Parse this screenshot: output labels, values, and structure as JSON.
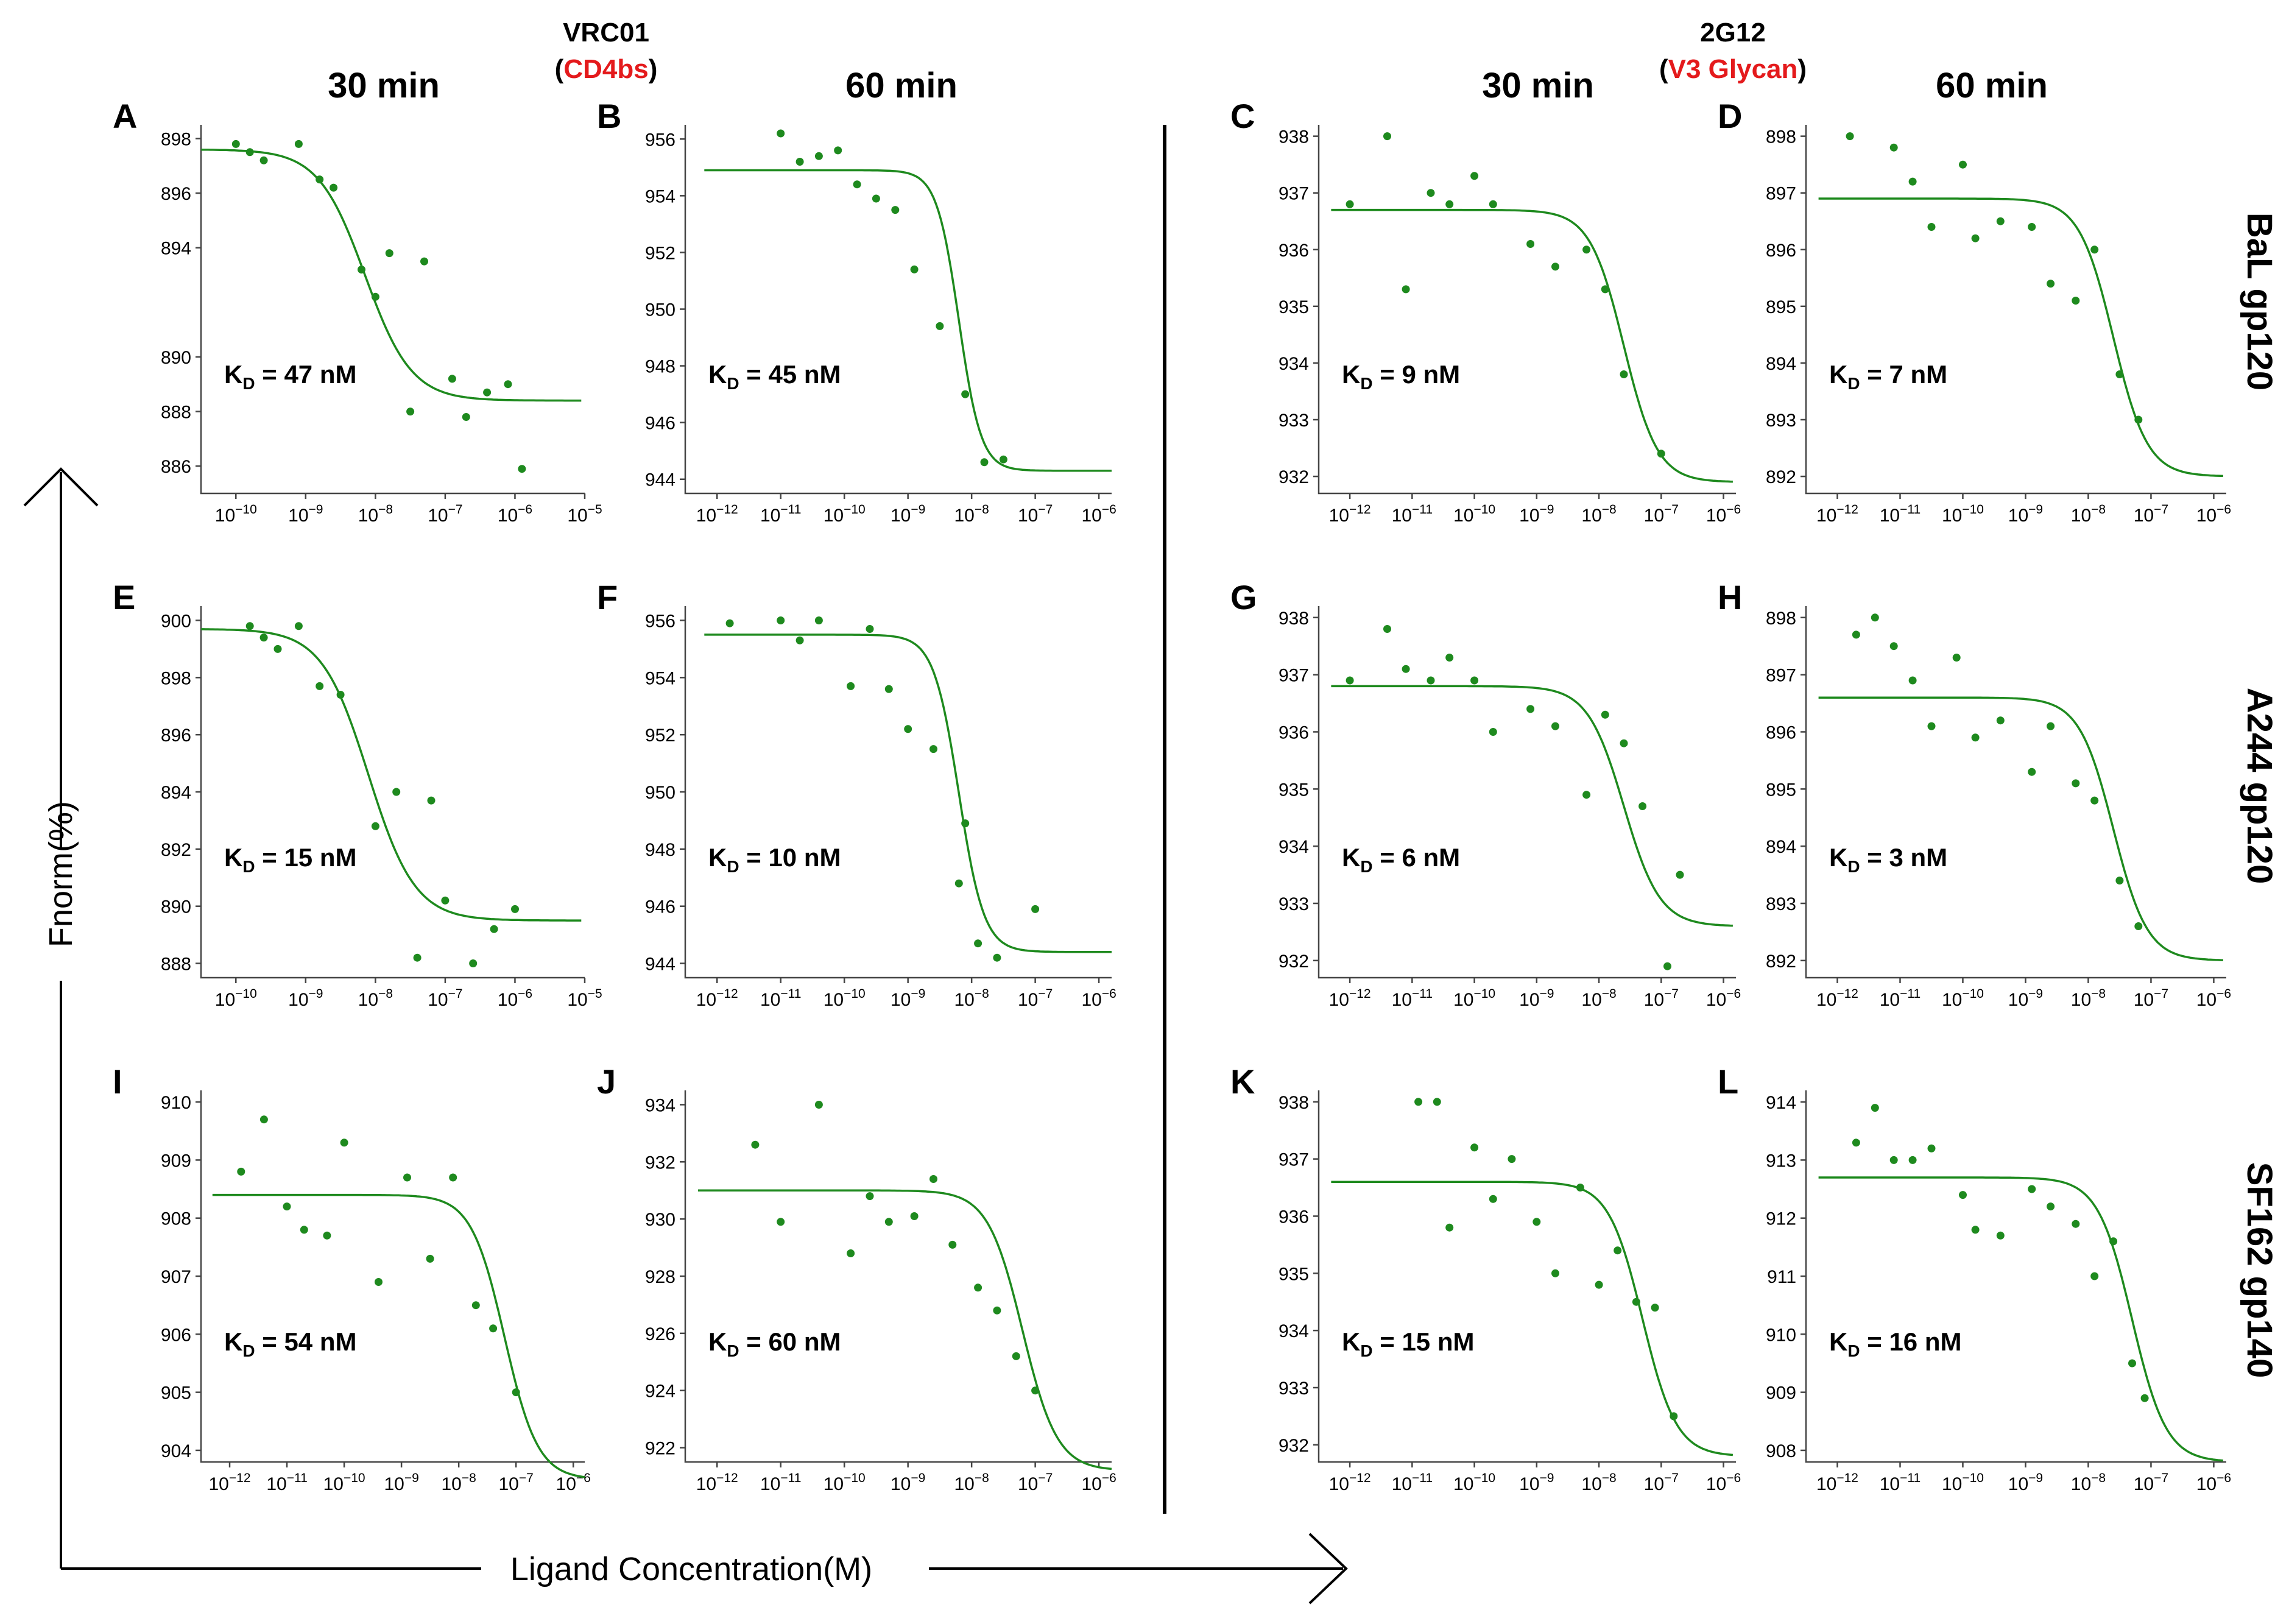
{
  "figure": {
    "left_group": {
      "antibody": "VRC01",
      "epitope": "CD4bs"
    },
    "right_group": {
      "antibody": "2G12",
      "epitope": "V3 Glycan"
    },
    "column_headers": [
      "30 min",
      "60 min",
      "30 min",
      "60 min"
    ],
    "row_labels": [
      "BaL gp120",
      "A244 gp120",
      "SF162 gp140"
    ],
    "y_axis_label": "Fnorm(%)",
    "x_axis_label": "Ligand Concentration(M)",
    "colors": {
      "fit": "#1e8a1e",
      "points": "#1e8a1e",
      "epitope": "#e41a1c"
    }
  },
  "chart_data": [
    {
      "panel": "A",
      "type": "scatter",
      "kd_value": "47 nM",
      "xlim_log": [
        -10.5,
        -5
      ],
      "ylim": [
        885,
        898.5
      ],
      "yticks": [
        886,
        888,
        890,
        894,
        896,
        898
      ],
      "xticks_exp": [
        -10,
        -9,
        -8,
        -7,
        -6,
        -5
      ],
      "fit": {
        "top": 897.6,
        "bottom": 888.4,
        "logEC50": -8.15,
        "hill": 1.3,
        "x_range": [
          -10.5,
          -5.05
        ]
      },
      "points": [
        [
          -10.0,
          897.8
        ],
        [
          -9.8,
          897.5
        ],
        [
          -9.6,
          897.2
        ],
        [
          -9.1,
          897.8
        ],
        [
          -8.8,
          896.5
        ],
        [
          -8.6,
          896.2
        ],
        [
          -8.2,
          893.2
        ],
        [
          -8.0,
          892.2
        ],
        [
          -7.8,
          893.8
        ],
        [
          -7.5,
          888.0
        ],
        [
          -7.3,
          893.5
        ],
        [
          -6.9,
          889.2
        ],
        [
          -6.7,
          887.8
        ],
        [
          -6.4,
          888.7
        ],
        [
          -6.1,
          889.0
        ],
        [
          -5.9,
          885.9
        ]
      ]
    },
    {
      "panel": "B",
      "type": "scatter",
      "kd_value": "45 nM",
      "xlim_log": [
        -12.5,
        -5.8
      ],
      "ylim": [
        943.5,
        956.5
      ],
      "yticks": [
        944,
        946,
        948,
        950,
        952,
        954,
        956
      ],
      "xticks_exp": [
        -12,
        -11,
        -10,
        -9,
        -8,
        -7,
        -6
      ],
      "fit": {
        "top": 954.9,
        "bottom": 944.3,
        "logEC50": -8.2,
        "hill": 2.5,
        "x_range": [
          -12.2,
          -5.8
        ]
      },
      "points": [
        [
          -11.0,
          956.2
        ],
        [
          -10.7,
          955.2
        ],
        [
          -10.4,
          955.4
        ],
        [
          -10.1,
          955.6
        ],
        [
          -9.8,
          954.4
        ],
        [
          -9.5,
          953.9
        ],
        [
          -9.2,
          953.5
        ],
        [
          -8.9,
          951.4
        ],
        [
          -8.5,
          949.4
        ],
        [
          -8.1,
          947.0
        ],
        [
          -7.8,
          944.6
        ],
        [
          -7.5,
          944.7
        ]
      ]
    },
    {
      "panel": "C",
      "type": "scatter",
      "kd_value": "9 nM",
      "xlim_log": [
        -12.5,
        -5.8
      ],
      "ylim": [
        931.7,
        938.2
      ],
      "yticks": [
        932,
        933,
        934,
        935,
        936,
        937,
        938
      ],
      "xticks_exp": [
        -12,
        -11,
        -10,
        -9,
        -8,
        -7,
        -6
      ],
      "fit": {
        "top": 936.7,
        "bottom": 931.9,
        "logEC50": -7.6,
        "hill": 1.6,
        "x_range": [
          -12.3,
          -5.85
        ]
      },
      "points": [
        [
          -12.0,
          936.8
        ],
        [
          -11.4,
          938.0
        ],
        [
          -11.1,
          935.3
        ],
        [
          -10.7,
          937.0
        ],
        [
          -10.4,
          936.8
        ],
        [
          -10.0,
          937.3
        ],
        [
          -9.7,
          936.8
        ],
        [
          -9.1,
          936.1
        ],
        [
          -8.7,
          935.7
        ],
        [
          -8.2,
          936.0
        ],
        [
          -7.9,
          935.3
        ],
        [
          -7.6,
          933.8
        ],
        [
          -7.0,
          932.4
        ]
      ]
    },
    {
      "panel": "D",
      "type": "scatter",
      "kd_value": "7 nM",
      "xlim_log": [
        -12.5,
        -5.8
      ],
      "ylim": [
        891.7,
        898.2
      ],
      "yticks": [
        892,
        893,
        894,
        895,
        896,
        897,
        898
      ],
      "xticks_exp": [
        -12,
        -11,
        -10,
        -9,
        -8,
        -7,
        -6
      ],
      "fit": {
        "top": 896.9,
        "bottom": 892.0,
        "logEC50": -7.6,
        "hill": 1.6,
        "x_range": [
          -12.3,
          -5.85
        ]
      },
      "points": [
        [
          -11.8,
          898.0
        ],
        [
          -11.1,
          897.8
        ],
        [
          -10.8,
          897.2
        ],
        [
          -10.5,
          896.4
        ],
        [
          -10.0,
          897.5
        ],
        [
          -9.8,
          896.2
        ],
        [
          -9.4,
          896.5
        ],
        [
          -8.9,
          896.4
        ],
        [
          -8.6,
          895.4
        ],
        [
          -8.2,
          895.1
        ],
        [
          -7.9,
          896.0
        ],
        [
          -7.5,
          893.8
        ],
        [
          -7.2,
          893.0
        ]
      ]
    },
    {
      "panel": "E",
      "type": "scatter",
      "kd_value": "15 nM",
      "xlim_log": [
        -10.5,
        -5
      ],
      "ylim": [
        887.5,
        900.5
      ],
      "yticks": [
        888,
        890,
        892,
        894,
        896,
        898,
        900
      ],
      "xticks_exp": [
        -10,
        -9,
        -8,
        -7,
        -6,
        -5
      ],
      "fit": {
        "top": 899.7,
        "bottom": 889.5,
        "logEC50": -8.1,
        "hill": 1.3,
        "x_range": [
          -10.5,
          -5.05
        ]
      },
      "points": [
        [
          -9.8,
          899.8
        ],
        [
          -9.6,
          899.4
        ],
        [
          -9.4,
          899.0
        ],
        [
          -9.1,
          899.8
        ],
        [
          -8.8,
          897.7
        ],
        [
          -8.5,
          897.4
        ],
        [
          -8.0,
          892.8
        ],
        [
          -7.7,
          894.0
        ],
        [
          -7.4,
          888.2
        ],
        [
          -7.2,
          893.7
        ],
        [
          -7.0,
          890.2
        ],
        [
          -6.6,
          888.0
        ],
        [
          -6.3,
          889.2
        ],
        [
          -6.0,
          889.9
        ]
      ]
    },
    {
      "panel": "F",
      "type": "scatter",
      "kd_value": "10 nM",
      "xlim_log": [
        -12.5,
        -5.8
      ],
      "ylim": [
        943.5,
        956.5
      ],
      "yticks": [
        944,
        946,
        948,
        950,
        952,
        954,
        956
      ],
      "xticks_exp": [
        -12,
        -11,
        -10,
        -9,
        -8,
        -7,
        -6
      ],
      "fit": {
        "top": 955.5,
        "bottom": 944.4,
        "logEC50": -8.2,
        "hill": 2.2,
        "x_range": [
          -12.2,
          -5.8
        ]
      },
      "points": [
        [
          -11.8,
          955.9
        ],
        [
          -11.0,
          956.0
        ],
        [
          -10.7,
          955.3
        ],
        [
          -10.4,
          956.0
        ],
        [
          -9.9,
          953.7
        ],
        [
          -9.6,
          955.7
        ],
        [
          -9.3,
          953.6
        ],
        [
          -9.0,
          952.2
        ],
        [
          -8.6,
          951.5
        ],
        [
          -8.2,
          946.8
        ],
        [
          -8.1,
          948.9
        ],
        [
          -7.9,
          944.7
        ],
        [
          -7.6,
          944.2
        ],
        [
          -7.0,
          945.9
        ]
      ]
    },
    {
      "panel": "G",
      "type": "scatter",
      "kd_value": "6 nM",
      "xlim_log": [
        -12.5,
        -5.8
      ],
      "ylim": [
        931.7,
        938.2
      ],
      "yticks": [
        932,
        933,
        934,
        935,
        936,
        937,
        938
      ],
      "xticks_exp": [
        -12,
        -11,
        -10,
        -9,
        -8,
        -7,
        -6
      ],
      "fit": {
        "top": 936.8,
        "bottom": 932.6,
        "logEC50": -7.6,
        "hill": 1.5,
        "x_range": [
          -12.3,
          -5.85
        ]
      },
      "points": [
        [
          -12.0,
          936.9
        ],
        [
          -11.4,
          937.8
        ],
        [
          -11.1,
          937.1
        ],
        [
          -10.7,
          936.9
        ],
        [
          -10.4,
          937.3
        ],
        [
          -10.0,
          936.9
        ],
        [
          -9.7,
          936.0
        ],
        [
          -9.1,
          936.4
        ],
        [
          -8.7,
          936.1
        ],
        [
          -8.2,
          934.9
        ],
        [
          -7.9,
          936.3
        ],
        [
          -7.6,
          935.8
        ],
        [
          -7.3,
          934.7
        ],
        [
          -6.9,
          931.9
        ],
        [
          -6.7,
          933.5
        ]
      ]
    },
    {
      "panel": "H",
      "type": "scatter",
      "kd_value": "3 nM",
      "xlim_log": [
        -12.5,
        -5.8
      ],
      "ylim": [
        891.7,
        898.2
      ],
      "yticks": [
        892,
        893,
        894,
        895,
        896,
        897,
        898
      ],
      "xticks_exp": [
        -12,
        -11,
        -10,
        -9,
        -8,
        -7,
        -6
      ],
      "fit": {
        "top": 896.6,
        "bottom": 892.0,
        "logEC50": -7.6,
        "hill": 1.6,
        "x_range": [
          -12.3,
          -5.85
        ]
      },
      "points": [
        [
          -11.7,
          897.7
        ],
        [
          -11.4,
          898.0
        ],
        [
          -11.1,
          897.5
        ],
        [
          -10.8,
          896.9
        ],
        [
          -10.5,
          896.1
        ],
        [
          -10.1,
          897.3
        ],
        [
          -9.8,
          895.9
        ],
        [
          -9.4,
          896.2
        ],
        [
          -8.9,
          895.3
        ],
        [
          -8.6,
          896.1
        ],
        [
          -8.2,
          895.1
        ],
        [
          -7.9,
          894.8
        ],
        [
          -7.5,
          893.4
        ],
        [
          -7.2,
          892.6
        ]
      ]
    },
    {
      "panel": "I",
      "type": "scatter",
      "kd_value": "54 nM",
      "xlim_log": [
        -12.5,
        -5.8
      ],
      "ylim": [
        903.8,
        910.2
      ],
      "yticks": [
        904,
        905,
        906,
        907,
        908,
        909,
        910
      ],
      "xticks_exp": [
        -12,
        -11,
        -10,
        -9,
        -8,
        -7,
        -6
      ],
      "fit": {
        "top": 908.4,
        "bottom": 903.5,
        "logEC50": -7.2,
        "hill": 1.5,
        "x_range": [
          -12.3,
          -5.8
        ]
      },
      "points": [
        [
          -11.8,
          908.8
        ],
        [
          -11.4,
          909.7
        ],
        [
          -11.0,
          908.2
        ],
        [
          -10.7,
          907.8
        ],
        [
          -10.3,
          907.7
        ],
        [
          -10.0,
          909.3
        ],
        [
          -9.4,
          906.9
        ],
        [
          -8.9,
          908.7
        ],
        [
          -8.5,
          907.3
        ],
        [
          -8.1,
          908.7
        ],
        [
          -7.7,
          906.5
        ],
        [
          -7.4,
          906.1
        ],
        [
          -7.0,
          905.0
        ]
      ]
    },
    {
      "panel": "J",
      "type": "scatter",
      "kd_value": "60 nM",
      "xlim_log": [
        -12.5,
        -5.8
      ],
      "ylim": [
        921.5,
        934.5
      ],
      "yticks": [
        922,
        924,
        926,
        928,
        930,
        932,
        934
      ],
      "xticks_exp": [
        -12,
        -11,
        -10,
        -9,
        -8,
        -7,
        -6
      ],
      "fit": {
        "top": 931.0,
        "bottom": 921.2,
        "logEC50": -7.2,
        "hill": 1.6,
        "x_range": [
          -12.3,
          -5.8
        ]
      },
      "points": [
        [
          -11.4,
          932.6
        ],
        [
          -11.0,
          929.9
        ],
        [
          -10.4,
          934.0
        ],
        [
          -9.9,
          928.8
        ],
        [
          -9.6,
          930.8
        ],
        [
          -9.3,
          929.9
        ],
        [
          -8.9,
          930.1
        ],
        [
          -8.6,
          931.4
        ],
        [
          -8.3,
          929.1
        ],
        [
          -7.9,
          927.6
        ],
        [
          -7.6,
          926.8
        ],
        [
          -7.3,
          925.2
        ],
        [
          -7.0,
          924.0
        ]
      ]
    },
    {
      "panel": "K",
      "type": "scatter",
      "kd_value": "15 nM",
      "xlim_log": [
        -12.5,
        -5.8
      ],
      "ylim": [
        931.7,
        938.2
      ],
      "yticks": [
        932,
        933,
        934,
        935,
        936,
        937,
        938
      ],
      "xticks_exp": [
        -12,
        -11,
        -10,
        -9,
        -8,
        -7,
        -6
      ],
      "fit": {
        "top": 936.6,
        "bottom": 931.8,
        "logEC50": -7.3,
        "hill": 1.6,
        "x_range": [
          -12.3,
          -5.85
        ]
      },
      "points": [
        [
          -10.9,
          938.0
        ],
        [
          -10.6,
          938.0
        ],
        [
          -10.4,
          935.8
        ],
        [
          -10.0,
          937.2
        ],
        [
          -9.7,
          936.3
        ],
        [
          -9.4,
          937.0
        ],
        [
          -9.0,
          935.9
        ],
        [
          -8.7,
          935.0
        ],
        [
          -8.3,
          936.5
        ],
        [
          -8.0,
          934.8
        ],
        [
          -7.7,
          935.4
        ],
        [
          -7.4,
          934.5
        ],
        [
          -7.1,
          934.4
        ],
        [
          -6.8,
          932.5
        ]
      ]
    },
    {
      "panel": "L",
      "type": "scatter",
      "kd_value": "16 nM",
      "xlim_log": [
        -12.5,
        -5.8
      ],
      "ylim": [
        907.8,
        914.2
      ],
      "yticks": [
        908,
        909,
        910,
        911,
        912,
        913,
        914
      ],
      "xticks_exp": [
        -12,
        -11,
        -10,
        -9,
        -8,
        -7,
        -6
      ],
      "fit": {
        "top": 912.7,
        "bottom": 907.8,
        "logEC50": -7.3,
        "hill": 1.6,
        "x_range": [
          -12.3,
          -5.85
        ]
      },
      "points": [
        [
          -11.7,
          913.3
        ],
        [
          -11.4,
          913.9
        ],
        [
          -11.1,
          913.0
        ],
        [
          -10.8,
          913.0
        ],
        [
          -10.5,
          913.2
        ],
        [
          -10.0,
          912.4
        ],
        [
          -9.8,
          911.8
        ],
        [
          -9.4,
          911.7
        ],
        [
          -8.9,
          912.5
        ],
        [
          -8.6,
          912.2
        ],
        [
          -8.2,
          911.9
        ],
        [
          -7.9,
          911.0
        ],
        [
          -7.6,
          911.6
        ],
        [
          -7.3,
          909.5
        ],
        [
          -7.1,
          908.9
        ]
      ]
    }
  ]
}
